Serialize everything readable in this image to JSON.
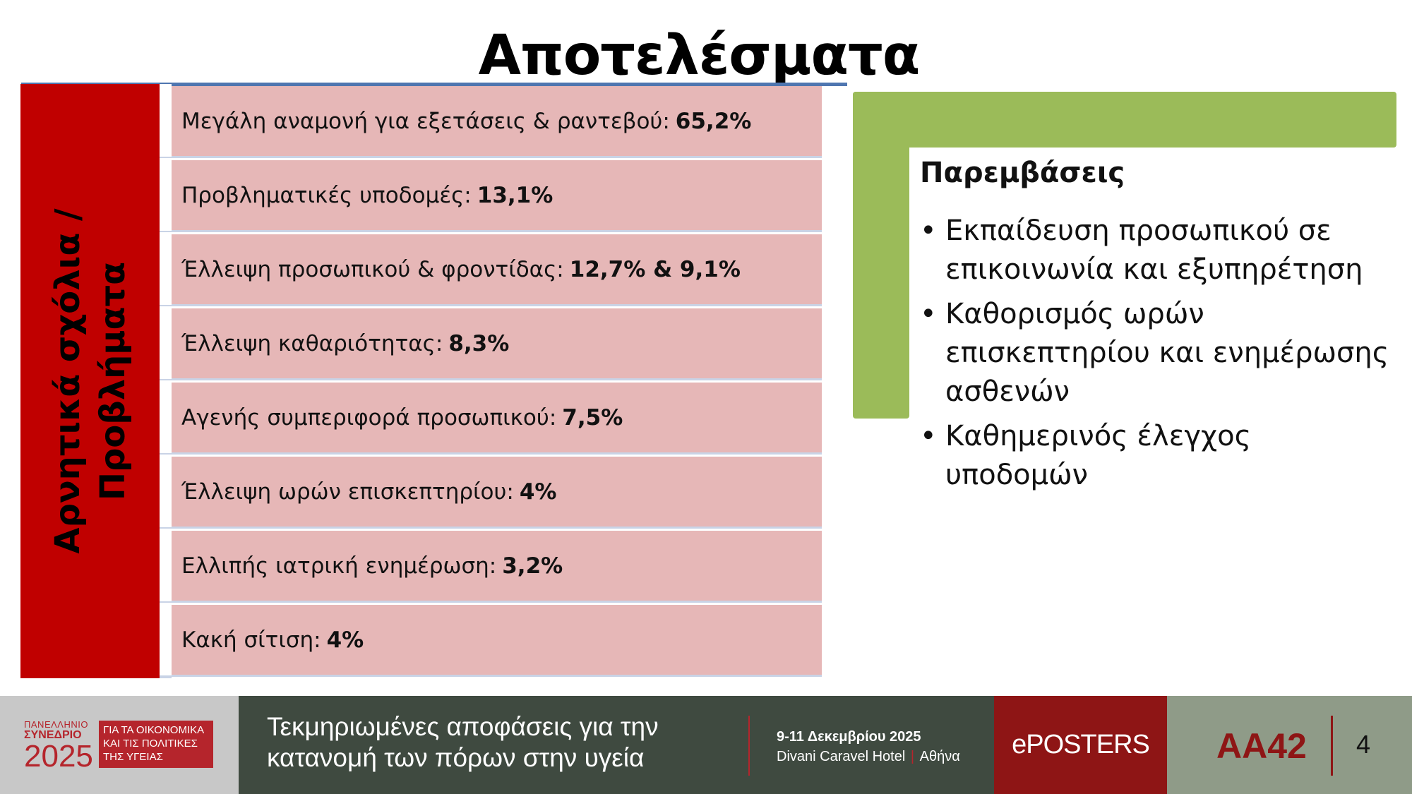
{
  "title": "Αποτελέσματα",
  "side_label": {
    "line1": "Αρνητικά σχόλια /",
    "line2": "Προβλήματα"
  },
  "rows": [
    {
      "label": "Μεγάλη αναμονή για εξετάσεις & ραντεβού:",
      "value": "65,2%"
    },
    {
      "label": "Προβληματικές υποδομές:",
      "value": "13,1%"
    },
    {
      "label": "Έλλειψη προσωπικού & φροντίδας:",
      "value": "12,7% & 9,1%"
    },
    {
      "label": "Έλλειψη καθαριότητας:",
      "value": "8,3%"
    },
    {
      "label": "Αγενής συμπεριφορά προσωπικού:",
      "value": "7,5%"
    },
    {
      "label": "Έλλειψη ωρών επισκεπτηρίου:",
      "value": "4%"
    },
    {
      "label": "Ελλιπής ιατρική ενημέρωση:",
      "value": "3,2%"
    },
    {
      "label": "Κακή σίτιση:",
      "value": "4%"
    }
  ],
  "interventions": {
    "title": "Παρεμβάσεις",
    "bullet": "•",
    "items": [
      "Εκπαίδευση προσωπικού σε επικοινωνία και εξυπηρέτηση",
      "Καθορισμός ωρών επισκεπτηρίου και ενημέρωσης ασθενών",
      "Καθημερινός έλεγχος υποδομών"
    ]
  },
  "footer": {
    "logo": {
      "line1": "ΠΑΝΕΛΛΗΝΙΟ",
      "line2": "ΣΥΝΕΔΡΙΟ",
      "year": "2025",
      "box_lines": [
        "ΓΙΑ ΤΑ ΟΙΚΟΝΟΜΙΚΑ",
        "ΚΑΙ ΤΙΣ ΠΟΛΙΤΙΚΕΣ",
        "ΤΗΣ ΥΓΕΙΑΣ"
      ]
    },
    "tagline_line1": "Τεκμηριωμένες αποφάσεις για την",
    "tagline_line2": "κατανομή των πόρων στην υγεία",
    "date": "9-11 Δεκεμβρίου 2025",
    "venue": "Divani Caravel Hotel",
    "venue_sep": "|",
    "city": "Αθήνα",
    "eposters": "ePOSTERS",
    "code": "AA42",
    "page": "4"
  },
  "colors": {
    "red": "#c00000",
    "row_pink": "#e6b7b7",
    "green": "#9bbb59",
    "title_rule": "#4f76b0",
    "footer_dark": "#3f4a40",
    "footer_red": "#8e1515"
  }
}
